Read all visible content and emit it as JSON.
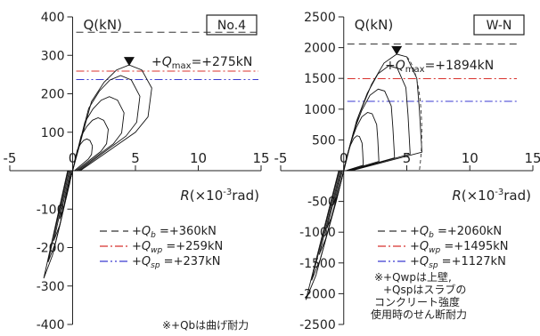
{
  "chart_data": [
    {
      "type": "line",
      "panel_label": "No.4",
      "ylabel": "Q(kN)",
      "xlabel": "R(×10⁻³rad)",
      "xlim": [
        -5,
        15
      ],
      "ylim": [
        -400,
        400
      ],
      "xticks": [
        "-5",
        "0",
        "5",
        "10",
        "15"
      ],
      "yticks": [
        "400",
        "300",
        "200",
        "100",
        "-100",
        "-200",
        "-300",
        "-400"
      ],
      "ytick_values": [
        400,
        300,
        200,
        100,
        -100,
        -200,
        -300,
        -400
      ],
      "peak": {
        "x": 4.5,
        "y": 275,
        "label": "+Qmax=+275kN"
      },
      "reference_lines": [
        {
          "name": "Qb",
          "value": 360,
          "label": "+Qb =+360kN",
          "color": "#333333",
          "dash": "8,5"
        },
        {
          "name": "Qwp",
          "value": 259,
          "label": "+Qwp =+259kN",
          "color": "#d8322d",
          "dash": "9,3,2,3"
        },
        {
          "name": "Qsp",
          "value": 237,
          "label": "+Qsp =+237kN",
          "color": "#3a3ad0",
          "dash": "9,3,2,3,2,3"
        }
      ],
      "note_lines": [
        "※+Qbは曲げ耐力"
      ],
      "envelope_positive": [
        [
          0,
          0
        ],
        [
          0.5,
          60
        ],
        [
          1.0,
          120
        ],
        [
          1.5,
          180
        ],
        [
          2.5,
          230
        ],
        [
          3.5,
          262
        ],
        [
          4.5,
          275
        ],
        [
          5.5,
          262
        ],
        [
          6.3,
          215
        ],
        [
          6.0,
          140
        ],
        [
          5.0,
          100
        ]
      ],
      "envelope_negative": [
        [
          0,
          0
        ],
        [
          -0.5,
          -60
        ],
        [
          -1.0,
          -140
        ],
        [
          -1.6,
          -220
        ],
        [
          -2.3,
          -280
        ]
      ]
    },
    {
      "type": "line",
      "panel_label": "W-N",
      "ylabel": "Q(kN)",
      "xlabel": "R(×10⁻³rad)",
      "xlim": [
        -5,
        15
      ],
      "ylim": [
        -2500,
        2500
      ],
      "xticks": [
        "-5",
        "0",
        "5",
        "10",
        "15"
      ],
      "yticks": [
        "2500",
        "2000",
        "1500",
        "1000",
        "500",
        "-500",
        "-1000",
        "-1500",
        "-2000",
        "-2500"
      ],
      "ytick_values": [
        2500,
        2000,
        1500,
        1000,
        500,
        -500,
        -1000,
        -1500,
        -2000,
        -2500
      ],
      "peak": {
        "x": 4.2,
        "y": 1894,
        "label": "+Qmax=+1894kN"
      },
      "reference_lines": [
        {
          "name": "Qb",
          "value": 2060,
          "label": "+Qb =+2060kN",
          "color": "#333333",
          "dash": "8,5"
        },
        {
          "name": "Qwp",
          "value": 1495,
          "label": "+Qwp =+1495kN",
          "color": "#d8322d",
          "dash": "9,3,2,3"
        },
        {
          "name": "Qsp",
          "value": 1127,
          "label": "+Qsp =+1127kN",
          "color": "#3a3ad0",
          "dash": "9,3,2,3,2,3"
        }
      ],
      "note_lines": [
        "※+Qwpは上壁,",
        "+Qspはスラブの",
        "コンクリート強度",
        "使用時のせん断耐力"
      ],
      "envelope_positive": [
        [
          0,
          0
        ],
        [
          0.5,
          400
        ],
        [
          1.2,
          900
        ],
        [
          2.2,
          1400
        ],
        [
          3.2,
          1750
        ],
        [
          4.2,
          1894
        ],
        [
          5.0,
          1850
        ],
        [
          5.8,
          1500
        ],
        [
          6.0,
          1000
        ],
        [
          6.2,
          300
        ]
      ],
      "envelope_negative": [
        [
          0,
          0
        ],
        [
          -0.6,
          -500
        ],
        [
          -1.4,
          -1100
        ],
        [
          -2.2,
          -1700
        ],
        [
          -3.0,
          -2100
        ]
      ]
    }
  ]
}
